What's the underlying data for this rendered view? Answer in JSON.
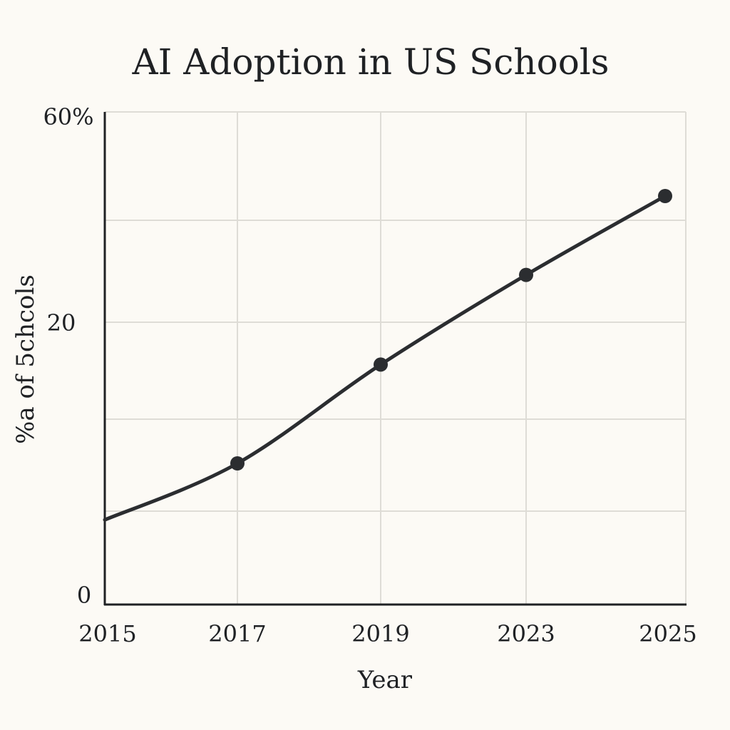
{
  "chart_data": {
    "type": "line",
    "title": "AI Adoption in US Schools",
    "xlabel": "Year",
    "ylabel": "%a of 5chcols",
    "x_tick_labels": [
      "2015",
      "2017",
      "2019",
      "2023",
      "2025"
    ],
    "y_tick_labels": [
      "0",
      "20",
      "60%"
    ],
    "grid": true,
    "legend": "none",
    "series": [
      {
        "x": [
          "2015",
          "2017",
          "2019",
          "2023",
          "2025"
        ],
        "values": [
          6,
          10,
          17,
          29,
          44
        ],
        "markers": [
          "2017",
          "2019",
          "2023",
          "2025"
        ]
      }
    ],
    "colors": {
      "line": "#2b2d30",
      "grid": "#dedcd6",
      "axis": "#1f2124",
      "background": "#fcfaf5"
    }
  }
}
